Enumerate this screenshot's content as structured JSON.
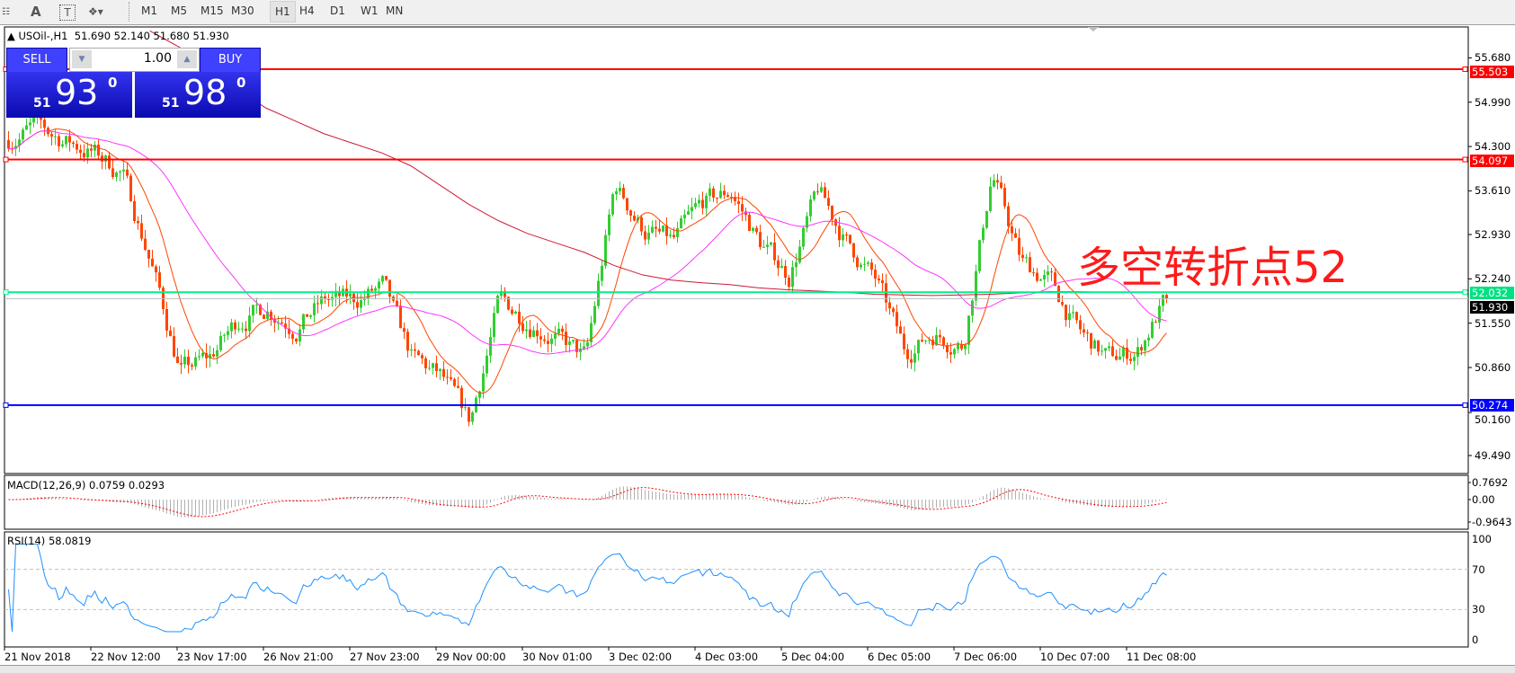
{
  "toolbar": {
    "icons": [
      "properties-icon",
      "text-icon",
      "text-label-icon",
      "arrows-icon"
    ],
    "text_tool": "A",
    "timeframes": [
      "M1",
      "M5",
      "M15",
      "M30",
      "H1",
      "H4",
      "D1",
      "W1",
      "MN"
    ],
    "active_timeframe": "H1"
  },
  "header": {
    "symbol": "USOil-,H1",
    "ohlc": "51.690 52.140 51.680 51.930"
  },
  "trade_panel": {
    "sell_label": "SELL",
    "buy_label": "BUY",
    "lot": "1.00",
    "sell_price": {
      "small": "51",
      "big": "93",
      "sup": "0"
    },
    "buy_price": {
      "small": "51",
      "big": "98",
      "sup": "0"
    }
  },
  "annotation": "多空转折点52",
  "colors": {
    "bull": "#32cd32",
    "bear": "#ff4500",
    "ma_fast": "#ff4500",
    "ma_mid": "#ff33ff",
    "ma_slow": "#cc1a33",
    "resistance": "#ff0000",
    "pivot": "#00ee88",
    "support": "#0000ff",
    "rsi": "#1e90ff",
    "macd_signal": "#ff0000",
    "macd_hist": "#b0b0b0"
  },
  "chart_data": {
    "type": "candlestick",
    "price_ticks": [
      "55.680",
      "54.990",
      "54.300",
      "53.610",
      "52.930",
      "52.240",
      "51.550",
      "50.860",
      "50.160",
      "49.490"
    ],
    "levels": [
      {
        "value": "55.503",
        "color": "#ff0000"
      },
      {
        "value": "54.097",
        "color": "#ff0000"
      },
      {
        "value": "52.032",
        "color": "#00ee88"
      },
      {
        "value": "51.930",
        "color": "#000000"
      },
      {
        "value": "50.274",
        "color": "#0000ff"
      }
    ],
    "x_tick_labels": [
      "21 Nov 2018",
      "22 Nov 12:00",
      "23 Nov 17:00",
      "26 Nov 21:00",
      "27 Nov 23:00",
      "29 Nov 00:00",
      "30 Nov 01:00",
      "3 Dec 02:00",
      "4 Dec 03:00",
      "5 Dec 04:00",
      "6 Dec 05:00",
      "7 Dec 06:00",
      "10 Dec 07:00",
      "11 Dec 08:00"
    ],
    "close_path": [
      54.4,
      54.6,
      54.4,
      54.2,
      53.9,
      52.5,
      50.8,
      51.0,
      51.6,
      51.8,
      51.5,
      51.9,
      51.9,
      52.1,
      51.0,
      50.7,
      50.0,
      51.9,
      51.6,
      51.3,
      51.0,
      53.7,
      53.0,
      52.8,
      53.4,
      53.6,
      52.8,
      52.3,
      53.6,
      52.8,
      52.2,
      51.1,
      51.4,
      51.2,
      53.9,
      52.5,
      52.2,
      51.4,
      51.0,
      51.1,
      51.93
    ],
    "ma_slow": [
      null,
      null,
      null,
      null,
      null,
      56.1,
      55.85,
      55.5,
      55.2,
      54.9,
      54.7,
      54.5,
      54.35,
      54.2,
      54.0,
      53.7,
      53.4,
      53.15,
      52.95,
      52.8,
      52.65,
      52.45,
      52.3,
      52.22,
      52.18,
      52.15,
      52.1,
      52.07,
      52.05,
      52.03,
      52.0,
      51.99,
      51.98,
      51.99,
      52.0,
      52.02,
      52.04,
      52.04,
      52.03,
      null,
      null
    ],
    "macd": {
      "label": "MACD(12,26,9) 0.0759 0.0293",
      "ticks": [
        "0.7692",
        "0.00",
        "-0.9643"
      ]
    },
    "rsi": {
      "label": "RSI(14) 58.0819",
      "ticks": [
        "100",
        "70",
        "30",
        "0"
      ],
      "levels": [
        70,
        30
      ]
    }
  }
}
